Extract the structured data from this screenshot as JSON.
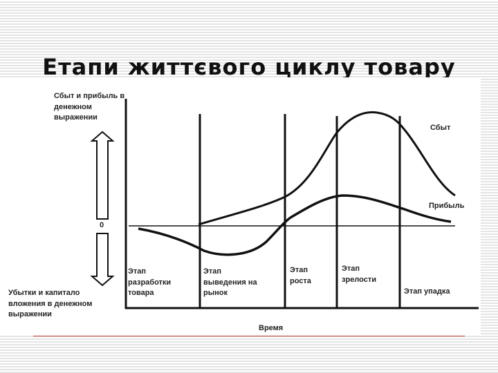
{
  "title": "Етапи життєвого циклу товару",
  "diagram": {
    "y_axis_top_label": [
      "Сбыт и прибыль в",
      "денежном",
      "выражении"
    ],
    "zero_label": "0",
    "y_axis_bottom_label": [
      "Убытки и капитало",
      "вложения в денежном",
      "выражении"
    ],
    "x_axis_label": "Время",
    "curves": {
      "sales": "Сбыт",
      "profit": "Прибыль"
    },
    "stages": [
      {
        "lines": [
          "Этап",
          "разработки",
          "товара"
        ]
      },
      {
        "lines": [
          "Этап",
          "выведения на",
          "рынок"
        ]
      },
      {
        "lines": [
          "Этап",
          "роста"
        ]
      },
      {
        "lines": [
          "Этап",
          "зрелости"
        ]
      },
      {
        "lines": [
          "Этап упадка"
        ]
      }
    ]
  },
  "colors": {
    "rule": "#c0392b",
    "ink": "#111111"
  }
}
